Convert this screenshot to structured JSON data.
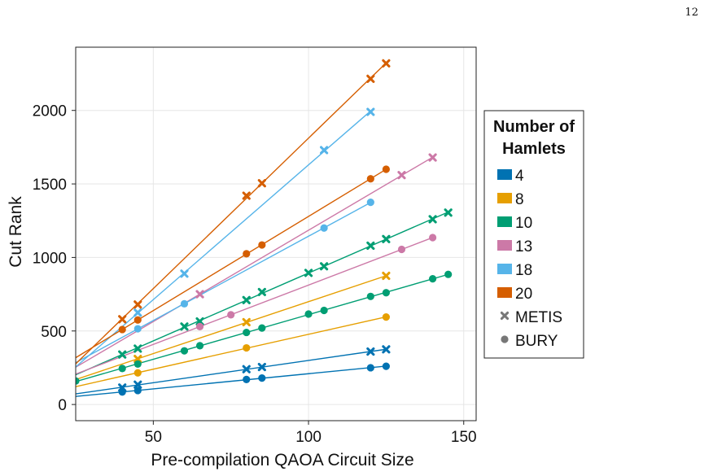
{
  "page_number": "12",
  "chart_data": {
    "type": "scatter",
    "xlabel": "Pre-compilation QAOA Circuit Size",
    "ylabel": "Cut Rank",
    "xlim": [
      25,
      154
    ],
    "ylim": [
      -110,
      2430
    ],
    "xticks": [
      50,
      100,
      150
    ],
    "yticks": [
      0,
      500,
      1000,
      1500,
      2000
    ],
    "grid": true,
    "legend": {
      "title_line1": "Number of",
      "title_line2": "Hamlets",
      "position": "right",
      "marker_entries": [
        {
          "label": "METIS",
          "marker": "x"
        },
        {
          "label": "BURY",
          "marker": "circle"
        }
      ]
    },
    "series": [
      {
        "name": "4",
        "color": "#0072B2",
        "metis": {
          "x": [
            40,
            45,
            80,
            85,
            120,
            125
          ],
          "y": [
            115,
            135,
            240,
            255,
            360,
            375
          ]
        },
        "bury": {
          "x": [
            40,
            45,
            80,
            85,
            120,
            125
          ],
          "y": [
            85,
            95,
            170,
            180,
            250,
            260
          ]
        }
      },
      {
        "name": "8",
        "color": "#E69F00",
        "metis": {
          "x": [
            45,
            80,
            125
          ],
          "y": [
            310,
            560,
            875
          ]
        },
        "bury": {
          "x": [
            45,
            80,
            125
          ],
          "y": [
            215,
            385,
            595
          ]
        }
      },
      {
        "name": "10",
        "color": "#009E73",
        "metis": {
          "x": [
            40,
            45,
            60,
            65,
            80,
            85,
            100,
            105,
            120,
            125,
            140,
            145
          ],
          "y": [
            340,
            380,
            530,
            565,
            710,
            765,
            895,
            940,
            1080,
            1125,
            1260,
            1305
          ]
        },
        "bury": {
          "x": [
            25,
            40,
            45,
            60,
            65,
            80,
            85,
            100,
            105,
            120,
            125,
            140,
            145
          ],
          "y": [
            160,
            245,
            275,
            365,
            400,
            490,
            520,
            615,
            640,
            735,
            760,
            855,
            885
          ]
        }
      },
      {
        "name": "13",
        "color": "#CC79A7",
        "metis": {
          "x": [
            65,
            130,
            140
          ],
          "y": [
            750,
            1560,
            1680
          ]
        },
        "bury": {
          "x": [
            65,
            75,
            130,
            140
          ],
          "y": [
            530,
            610,
            1055,
            1135
          ]
        }
      },
      {
        "name": "18",
        "color": "#56B4E9",
        "metis": {
          "x": [
            45,
            60,
            105,
            120
          ],
          "y": [
            625,
            890,
            1730,
            1990
          ]
        },
        "bury": {
          "x": [
            45,
            60,
            105,
            120
          ],
          "y": [
            515,
            685,
            1200,
            1375
          ]
        }
      },
      {
        "name": "20",
        "color": "#D55E00",
        "metis": {
          "x": [
            40,
            45,
            80,
            85,
            120,
            125
          ],
          "y": [
            580,
            680,
            1420,
            1505,
            2215,
            2320
          ]
        },
        "bury": {
          "x": [
            40,
            45,
            80,
            85,
            120,
            125
          ],
          "y": [
            510,
            575,
            1025,
            1085,
            1535,
            1600
          ]
        }
      }
    ]
  }
}
